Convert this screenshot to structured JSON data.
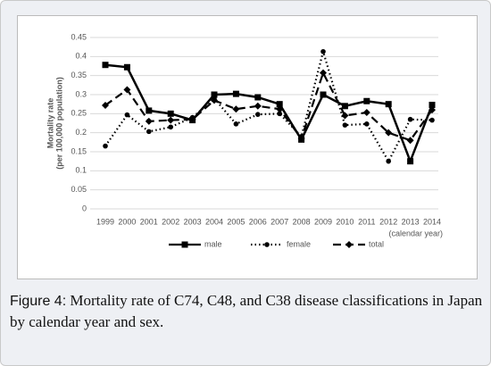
{
  "chart_data": {
    "type": "line",
    "y_label_lines": [
      "Mortality rate",
      "(per 100,000 population)"
    ],
    "x_label": "(calendar year)",
    "categories": [
      "1999",
      "2000",
      "2001",
      "2002",
      "2003",
      "2004",
      "2005",
      "2006",
      "2007",
      "2008",
      "2009",
      "2010",
      "2011",
      "2012",
      "2013",
      "2014"
    ],
    "series": [
      {
        "name": "male",
        "color": "#000000",
        "style": "solid",
        "marker": "square",
        "values": [
          0.378,
          0.372,
          0.258,
          0.25,
          0.233,
          0.3,
          0.302,
          0.293,
          0.275,
          0.182,
          0.3,
          0.27,
          0.283,
          0.275,
          0.125,
          0.273
        ]
      },
      {
        "name": "female",
        "color": "#000000",
        "style": "dotted",
        "marker": "circle",
        "values": [
          0.165,
          0.247,
          0.203,
          0.215,
          0.24,
          0.29,
          0.223,
          0.248,
          0.25,
          0.19,
          0.413,
          0.22,
          0.223,
          0.125,
          0.235,
          0.233
        ]
      },
      {
        "name": "total",
        "color": "#000000",
        "style": "dashed",
        "marker": "diamond",
        "values": [
          0.272,
          0.313,
          0.23,
          0.233,
          0.235,
          0.285,
          0.262,
          0.27,
          0.262,
          0.185,
          0.357,
          0.245,
          0.253,
          0.2,
          0.18,
          0.26
        ]
      }
    ],
    "ylim": [
      0,
      0.45
    ],
    "yticks": [
      0,
      0.05,
      0.1,
      0.15,
      0.2,
      0.25,
      0.3,
      0.35,
      0.4,
      0.45
    ],
    "grid": true,
    "legend": "bottom"
  },
  "caption": {
    "label": "Figure 4:",
    "text": " Mortality rate of C74, C48, and C38 disease classifications in Japan by calendar year and sex."
  }
}
